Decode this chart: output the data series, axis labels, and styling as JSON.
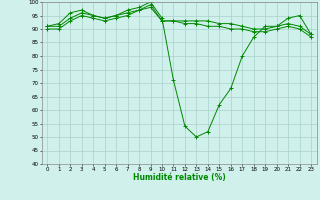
{
  "xlabel": "Humidité relative (%)",
  "xlim": [
    -0.5,
    23.5
  ],
  "ylim": [
    40,
    100
  ],
  "yticks": [
    40,
    45,
    50,
    55,
    60,
    65,
    70,
    75,
    80,
    85,
    90,
    95,
    100
  ],
  "xticks": [
    0,
    1,
    2,
    3,
    4,
    5,
    6,
    7,
    8,
    9,
    10,
    11,
    12,
    13,
    14,
    15,
    16,
    17,
    18,
    19,
    20,
    21,
    22,
    23
  ],
  "bg_color": "#cff0eb",
  "grid_color": "#aacfca",
  "line_color": "#008800",
  "series": [
    {
      "x": [
        0,
        1,
        2,
        3,
        4,
        5,
        6,
        7,
        8,
        9,
        10,
        11,
        12,
        13,
        14,
        15,
        16,
        17,
        18,
        19,
        20,
        21,
        22,
        23
      ],
      "y": [
        91,
        92,
        96,
        97,
        95,
        94,
        95,
        97,
        98,
        100,
        94,
        71,
        54,
        50,
        52,
        62,
        68,
        80,
        87,
        91,
        91,
        94,
        95,
        88
      ]
    },
    {
      "x": [
        0,
        1,
        2,
        3,
        4,
        5,
        6,
        7,
        8,
        9,
        10,
        11,
        12,
        13,
        14,
        15,
        16,
        17,
        18,
        19,
        20,
        21,
        22,
        23
      ],
      "y": [
        91,
        91,
        94,
        96,
        95,
        94,
        95,
        96,
        97,
        99,
        93,
        93,
        93,
        93,
        93,
        92,
        92,
        91,
        90,
        90,
        91,
        92,
        91,
        88
      ]
    },
    {
      "x": [
        0,
        1,
        2,
        3,
        4,
        5,
        6,
        7,
        8,
        9,
        10,
        11,
        12,
        13,
        14,
        15,
        16,
        17,
        18,
        19,
        20,
        21,
        22,
        23
      ],
      "y": [
        90,
        90,
        93,
        95,
        94,
        93,
        94,
        95,
        97,
        98,
        93,
        93,
        92,
        92,
        91,
        91,
        90,
        90,
        89,
        89,
        90,
        91,
        90,
        87
      ]
    }
  ]
}
